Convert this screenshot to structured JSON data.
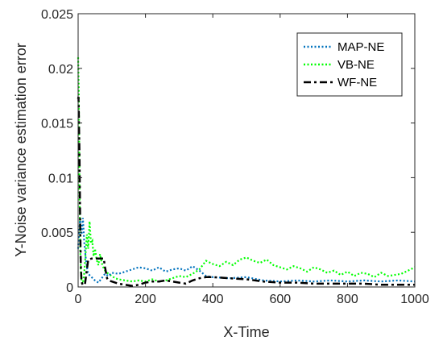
{
  "chart_data": {
    "type": "line",
    "title": "",
    "xlabel": "X-Time",
    "ylabel": "Y-Noise variance estimation error",
    "xlim": [
      0,
      1000
    ],
    "ylim": [
      0,
      0.025
    ],
    "xticks": [
      0,
      200,
      400,
      600,
      800,
      1000
    ],
    "yticks": [
      0,
      0.005,
      0.01,
      0.015,
      0.02,
      0.025
    ],
    "ytick_labels": [
      "0",
      "0.005",
      "0.01",
      "0.015",
      "0.02",
      "0.025"
    ],
    "xtick_labels": [
      "0",
      "200",
      "400",
      "600",
      "800",
      "1000"
    ],
    "grid": false,
    "legend_position": "top-right",
    "series": [
      {
        "name": "MAP-NE",
        "color": "#0072BD",
        "style": "dotted",
        "x": [
          0,
          3,
          6,
          10,
          14,
          18,
          22,
          26,
          30,
          40,
          50,
          60,
          70,
          80,
          90,
          100,
          120,
          140,
          160,
          180,
          200,
          220,
          240,
          260,
          280,
          300,
          320,
          340,
          360,
          380,
          400,
          450,
          500,
          550,
          600,
          650,
          700,
          750,
          800,
          850,
          900,
          950,
          1000
        ],
        "y": [
          0.0035,
          0.0052,
          0.0061,
          0.0048,
          0.0063,
          0.0042,
          0.0028,
          0.0018,
          0.0012,
          0.0009,
          0.0006,
          0.0004,
          0.0008,
          0.0012,
          0.001,
          0.0013,
          0.0012,
          0.0014,
          0.0016,
          0.0018,
          0.0017,
          0.0015,
          0.0018,
          0.0014,
          0.0016,
          0.0017,
          0.0015,
          0.0019,
          0.0015,
          0.001,
          0.0009,
          0.0008,
          0.0009,
          0.0006,
          0.0005,
          0.0006,
          0.0005,
          0.0006,
          0.0005,
          0.0006,
          0.0005,
          0.0006,
          0.0005
        ]
      },
      {
        "name": "VB-NE",
        "color": "#00FF00",
        "style": "dotted",
        "x": [
          0,
          2,
          4,
          6,
          8,
          10,
          14,
          18,
          22,
          26,
          30,
          34,
          38,
          42,
          46,
          50,
          55,
          60,
          65,
          70,
          75,
          80,
          90,
          100,
          110,
          120,
          140,
          160,
          180,
          200,
          220,
          240,
          260,
          280,
          300,
          320,
          340,
          360,
          380,
          400,
          420,
          440,
          460,
          480,
          500,
          520,
          540,
          560,
          580,
          600,
          620,
          640,
          660,
          680,
          700,
          720,
          740,
          760,
          780,
          800,
          820,
          840,
          860,
          880,
          900,
          920,
          940,
          960,
          980,
          1000
        ],
        "y": [
          0.021,
          0.018,
          0.009,
          0.004,
          0.0015,
          0.0005,
          0.0003,
          0.0012,
          0.003,
          0.0048,
          0.0035,
          0.006,
          0.004,
          0.0042,
          0.0028,
          0.0035,
          0.0025,
          0.002,
          0.003,
          0.0022,
          0.0018,
          0.0015,
          0.0012,
          0.001,
          0.0008,
          0.0007,
          0.0006,
          0.0005,
          0.0006,
          0.0005,
          0.0007,
          0.0005,
          0.0006,
          0.0008,
          0.001,
          0.0009,
          0.0012,
          0.0016,
          0.0024,
          0.0021,
          0.0019,
          0.0023,
          0.002,
          0.0025,
          0.0027,
          0.0024,
          0.0022,
          0.0025,
          0.002,
          0.0018,
          0.0016,
          0.0019,
          0.0017,
          0.0014,
          0.0018,
          0.0016,
          0.0013,
          0.0015,
          0.0011,
          0.0014,
          0.001,
          0.0013,
          0.0012,
          0.0009,
          0.0013,
          0.001,
          0.0011,
          0.0012,
          0.0015,
          0.0018
        ]
      },
      {
        "name": "WF-NE",
        "color": "#000000",
        "style": "dashdot",
        "x": [
          0,
          1,
          2,
          4,
          6,
          8,
          10,
          12,
          14,
          16,
          20,
          30,
          40,
          50,
          60,
          70,
          76,
          80,
          86,
          90,
          100,
          120,
          140,
          160,
          180,
          200,
          220,
          240,
          260,
          280,
          300,
          320,
          340,
          360,
          380,
          400,
          450,
          500,
          550,
          600,
          650,
          700,
          750,
          800,
          850,
          900,
          950,
          1000
        ],
        "y": [
          0.0172,
          0.0174,
          0.016,
          0.012,
          0.006,
          0.002,
          0.0005,
          0.0003,
          0.0002,
          0.0002,
          0.0002,
          0.0025,
          0.0026,
          0.0026,
          0.0026,
          0.0026,
          0.0026,
          0.0018,
          0.0008,
          0.0006,
          0.0005,
          0.0003,
          0.0002,
          0.0001,
          0.0002,
          0.0004,
          0.0005,
          0.0005,
          0.0006,
          0.0005,
          0.0004,
          0.0003,
          0.0006,
          0.0008,
          0.0009,
          0.0009,
          0.0008,
          0.0007,
          0.0005,
          0.0004,
          0.0004,
          0.0003,
          0.0003,
          0.0003,
          0.0003,
          0.0002,
          0.0002,
          0.0002
        ]
      }
    ]
  }
}
